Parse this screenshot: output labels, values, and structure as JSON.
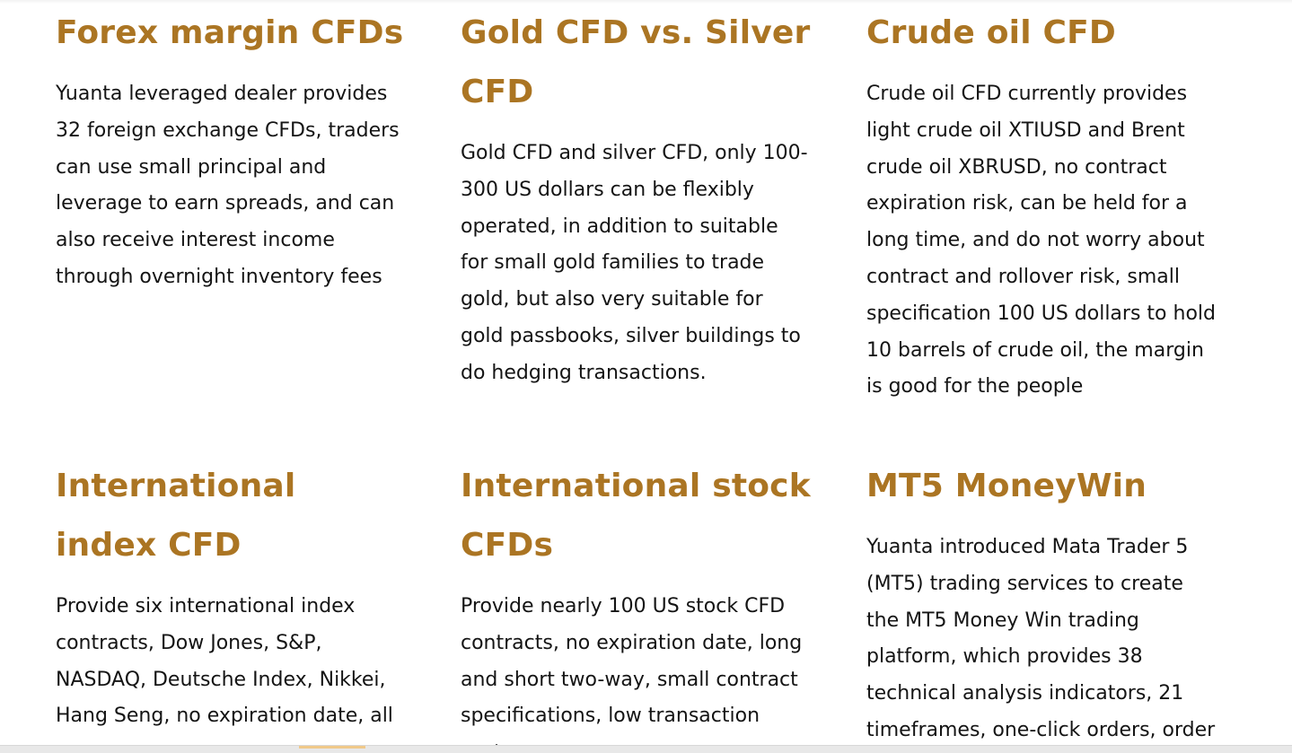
{
  "cards": [
    {
      "title": "Forex margin CFDs",
      "text": "Yuanta leveraged dealer provides 32 foreign exchange CFDs, traders can use small principal and leverage to earn spreads, and can also receive interest income through overnight inventory fees"
    },
    {
      "title": "Gold CFD vs. Silver CFD",
      "text": "Gold CFD and silver CFD, only 100-300 US dollars can be flexibly operated, in addition to suitable for small gold families to trade gold, but also very suitable for gold passbooks, silver buildings to do hedging transactions."
    },
    {
      "title": "Crude oil CFD",
      "text": "Crude oil CFD currently provides light crude oil XTIUSD and Brent crude oil XBRUSD, no contract expiration risk, can be held for a long time, and do not worry about contract and rollover risk, small specification 100 US dollars to hold 10 barrels of crude oil, the margin is good for the people"
    },
    {
      "title": "International index CFD",
      "text": "Provide six international index contracts, Dow Jones, S&P, NASDAQ, Deutsche Index, Nikkei, Hang Seng, no expiration date, all"
    },
    {
      "title": "International stock CFDs",
      "text": "Provide nearly 100 US stock CFD contracts, no expiration date, long and short two-way, small contract specifications, low transaction costs,"
    },
    {
      "title": "MT5 MoneyWin",
      "text": "Yuanta introduced Mata Trader 5 (MT5) trading services to create the MT5 Money Win trading platform, which provides 38 technical analysis indicators, 21 timeframes, one-click orders, order assistance tools and a"
    }
  ],
  "colors": {
    "heading": "#ab7523",
    "body_text": "#141414",
    "background": "#ffffff"
  }
}
